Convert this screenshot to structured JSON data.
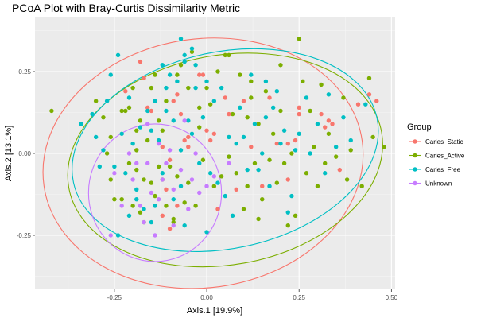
{
  "chart_data": {
    "type": "scatter",
    "title": "PCoA Plot with Bray-Curtis Dissimilarity Metric",
    "xlabel": "Axis.1   [19.9%]",
    "ylabel": "Axis.2   [13.1%]",
    "xlim": [
      -0.465,
      0.51
    ],
    "ylim": [
      -0.415,
      0.415
    ],
    "x_ticks": [
      -0.25,
      0.0,
      0.25,
      0.5
    ],
    "x_tick_labels": [
      "-0.25",
      "0.00",
      "0.25",
      "0.50"
    ],
    "y_ticks": [
      -0.25,
      0.0,
      0.25
    ],
    "y_tick_labels": [
      "-0.25",
      "0.00",
      "0.25"
    ],
    "grid": true,
    "background": "#ebebeb",
    "legend": {
      "title": "Group",
      "position": "right"
    },
    "series": [
      {
        "name": "Caries_Static",
        "color": "#F8766D",
        "points": [
          [
            -0.18,
            0.28
          ],
          [
            -0.17,
            0.23
          ],
          [
            -0.16,
            0.14
          ],
          [
            -0.15,
            0.13
          ],
          [
            -0.12,
            0.02
          ],
          [
            -0.1,
            -0.02
          ],
          [
            -0.1,
            -0.23
          ],
          [
            -0.09,
            0.16
          ],
          [
            -0.08,
            0.18
          ],
          [
            -0.07,
            0.12
          ],
          [
            -0.06,
            0.04
          ],
          [
            -0.05,
            0.05
          ],
          [
            -0.02,
            0.24
          ],
          [
            -0.01,
            0.24
          ],
          [
            0.0,
            0.07
          ],
          [
            0.01,
            0.04
          ],
          [
            0.02,
            0.06
          ],
          [
            0.05,
            0.17
          ],
          [
            0.06,
            0.12
          ],
          [
            0.08,
            -0.11
          ],
          [
            0.1,
            0.16
          ],
          [
            0.12,
            0.02
          ],
          [
            0.17,
            0.17
          ],
          [
            0.19,
            0.03
          ],
          [
            0.22,
            0.03
          ],
          [
            0.22,
            -0.08
          ],
          [
            0.24,
            0.04
          ],
          [
            0.25,
            0.12
          ],
          [
            0.25,
            0.14
          ],
          [
            0.31,
            0.12
          ],
          [
            0.32,
            0.08
          ],
          [
            0.33,
            0.1
          ],
          [
            0.34,
            0.09
          ],
          [
            0.36,
            -0.05
          ],
          [
            0.41,
            0.15
          ],
          [
            0.44,
            0.18
          ],
          [
            0.46,
            0.16
          ],
          [
            -0.05,
            0.02
          ],
          [
            -0.22,
            0.19
          ],
          [
            -0.11,
            -0.11
          ],
          [
            -0.12,
            -0.19
          ],
          [
            0.03,
            -0.17
          ],
          [
            -0.08,
            -0.16
          ],
          [
            0.15,
            -0.1
          ]
        ]
      },
      {
        "name": "Caries_Active",
        "color": "#7CAE00",
        "points": [
          [
            -0.42,
            0.13
          ],
          [
            -0.3,
            0.16
          ],
          [
            -0.28,
            0.11
          ],
          [
            -0.27,
            0.0
          ],
          [
            -0.26,
            0.05
          ],
          [
            -0.26,
            -0.08
          ],
          [
            -0.25,
            -0.14
          ],
          [
            -0.23,
            0.13
          ],
          [
            -0.23,
            -0.14
          ],
          [
            -0.22,
            0.13
          ],
          [
            -0.21,
            0.14
          ],
          [
            -0.21,
            -0.03
          ],
          [
            -0.2,
            0.2
          ],
          [
            -0.2,
            -0.16
          ],
          [
            -0.19,
            0.07
          ],
          [
            -0.19,
            -0.05
          ],
          [
            -0.18,
            0.1
          ],
          [
            -0.18,
            -0.18
          ],
          [
            -0.17,
            -0.08
          ],
          [
            -0.17,
            -0.21
          ],
          [
            -0.16,
            0.04
          ],
          [
            -0.15,
            -0.09
          ],
          [
            -0.14,
            0.24
          ],
          [
            -0.14,
            -0.13
          ],
          [
            -0.13,
            0.1
          ],
          [
            -0.13,
            -0.04
          ],
          [
            -0.12,
            0.07
          ],
          [
            -0.12,
            -0.08
          ],
          [
            -0.11,
            0.16
          ],
          [
            -0.11,
            -0.16
          ],
          [
            -0.1,
            -0.04
          ],
          [
            -0.09,
            -0.21
          ],
          [
            -0.08,
            0.24
          ],
          [
            -0.08,
            -0.07
          ],
          [
            -0.07,
            0.27
          ],
          [
            -0.06,
            -0.15
          ],
          [
            -0.05,
            0.2
          ],
          [
            -0.05,
            -0.09
          ],
          [
            -0.04,
            0.31
          ],
          [
            -0.03,
            -0.16
          ],
          [
            -0.02,
            0.14
          ],
          [
            -0.01,
            -0.02
          ],
          [
            0.0,
            0.2
          ],
          [
            0.02,
            -0.1
          ],
          [
            0.03,
            0.25
          ],
          [
            0.04,
            -0.07
          ],
          [
            0.05,
            0.3
          ],
          [
            0.06,
            -0.01
          ],
          [
            0.07,
            0.12
          ],
          [
            0.08,
            -0.06
          ],
          [
            0.09,
            0.24
          ],
          [
            0.1,
            -0.17
          ],
          [
            0.11,
            0.11
          ],
          [
            0.11,
            -0.1
          ],
          [
            0.12,
            0.22
          ],
          [
            0.13,
            -0.03
          ],
          [
            0.14,
            0.09
          ],
          [
            0.15,
            -0.14
          ],
          [
            0.16,
            0.19
          ],
          [
            0.17,
            -0.02
          ],
          [
            0.18,
            0.06
          ],
          [
            0.19,
            -0.09
          ],
          [
            0.2,
            0.13
          ],
          [
            0.21,
            -0.03
          ],
          [
            0.22,
            -0.22
          ],
          [
            0.23,
            0.0
          ],
          [
            0.24,
            -0.19
          ],
          [
            0.25,
            0.35
          ],
          [
            0.26,
            0.22
          ],
          [
            0.27,
            -0.06
          ],
          [
            0.28,
            0.13
          ],
          [
            0.29,
            0.02
          ],
          [
            0.3,
            -0.1
          ],
          [
            0.31,
            0.21
          ],
          [
            0.32,
            -0.03
          ],
          [
            0.33,
            0.06
          ],
          [
            0.35,
            -0.01
          ],
          [
            0.37,
            0.17
          ],
          [
            0.38,
            -0.08
          ],
          [
            0.39,
            0.01
          ],
          [
            0.42,
            -0.1
          ],
          [
            0.44,
            0.23
          ],
          [
            0.45,
            0.05
          ],
          [
            0.48,
            0.02
          ],
          [
            -0.02,
            0.08
          ],
          [
            0.12,
            0.17
          ],
          [
            -0.15,
            0.2
          ],
          [
            0.06,
            0.3
          ],
          [
            0.14,
            -0.2
          ],
          [
            -0.09,
            -0.2
          ],
          [
            -0.19,
            0.01
          ],
          [
            0.01,
            0.15
          ],
          [
            0.2,
            0.27
          ]
        ]
      },
      {
        "name": "Caries_Free",
        "color": "#00BFC4",
        "points": [
          [
            -0.34,
            0.09
          ],
          [
            -0.31,
            0.12
          ],
          [
            -0.3,
            0.05
          ],
          [
            -0.29,
            -0.04
          ],
          [
            -0.28,
            0.01
          ],
          [
            -0.27,
            0.16
          ],
          [
            -0.26,
            0.24
          ],
          [
            -0.25,
            -0.04
          ],
          [
            -0.24,
            -0.25
          ],
          [
            -0.24,
            0.3
          ],
          [
            -0.23,
            0.06
          ],
          [
            -0.22,
            -0.06
          ],
          [
            -0.21,
            0.17
          ],
          [
            -0.21,
            -0.19
          ],
          [
            -0.2,
            0.03
          ],
          [
            -0.19,
            -0.11
          ],
          [
            -0.19,
            -0.14
          ],
          [
            -0.18,
            0.08
          ],
          [
            -0.17,
            -0.17
          ],
          [
            -0.16,
            0.13
          ],
          [
            -0.15,
            0.07
          ],
          [
            -0.15,
            -0.21
          ],
          [
            -0.14,
            0.16
          ],
          [
            -0.14,
            -0.16
          ],
          [
            -0.13,
            0.04
          ],
          [
            -0.12,
            -0.06
          ],
          [
            -0.12,
            0.27
          ],
          [
            -0.11,
            0.13
          ],
          [
            -0.1,
            0.24
          ],
          [
            -0.09,
            0.1
          ],
          [
            -0.09,
            -0.14
          ],
          [
            -0.08,
            0.22
          ],
          [
            -0.07,
            0.01
          ],
          [
            -0.07,
            -0.1
          ],
          [
            -0.06,
            0.3
          ],
          [
            -0.06,
            -0.22
          ],
          [
            -0.05,
            0.1
          ],
          [
            -0.04,
            0.32
          ],
          [
            -0.04,
            0.06
          ],
          [
            -0.03,
            0.2
          ],
          [
            -0.02,
            -0.03
          ],
          [
            -0.01,
            0.11
          ],
          [
            0.0,
            0.22
          ],
          [
            0.01,
            -0.06
          ],
          [
            0.02,
            0.16
          ],
          [
            0.03,
            -0.09
          ],
          [
            0.04,
            0.2
          ],
          [
            0.05,
            -0.13
          ],
          [
            0.06,
            0.05
          ],
          [
            0.07,
            -0.19
          ],
          [
            0.08,
            0.03
          ],
          [
            0.09,
            0.14
          ],
          [
            0.1,
            0.05
          ],
          [
            0.11,
            -0.05
          ],
          [
            0.12,
            0.24
          ],
          [
            0.13,
            0.09
          ],
          [
            0.14,
            -0.05
          ],
          [
            0.15,
            0.0
          ],
          [
            0.16,
            0.11
          ],
          [
            0.17,
            -0.1
          ],
          [
            0.18,
            0.14
          ],
          [
            0.19,
            0.19
          ],
          [
            0.2,
            0.03
          ],
          [
            0.21,
            0.07
          ],
          [
            0.22,
            -0.18
          ],
          [
            0.23,
            -0.13
          ],
          [
            0.24,
            0.01
          ],
          [
            0.25,
            0.06
          ],
          [
            0.27,
            0.17
          ],
          [
            0.28,
            0.0
          ],
          [
            0.3,
            0.09
          ],
          [
            0.32,
            -0.06
          ],
          [
            0.33,
            0.18
          ],
          [
            0.35,
            0.02
          ],
          [
            0.37,
            0.11
          ],
          [
            0.39,
            0.04
          ],
          [
            0.43,
            0.15
          ],
          [
            -0.07,
            0.35
          ],
          [
            -0.06,
            0.28
          ],
          [
            -0.03,
            0.27
          ],
          [
            -0.11,
            0.2
          ],
          [
            0.0,
            -0.24
          ],
          [
            0.16,
            0.22
          ]
        ]
      },
      {
        "name": "Unknown",
        "color": "#C77CFF",
        "points": [
          [
            -0.26,
            -0.25
          ],
          [
            -0.25,
            -0.06
          ],
          [
            -0.23,
            -0.16
          ],
          [
            -0.21,
            0.0
          ],
          [
            -0.2,
            -0.08
          ],
          [
            -0.19,
            -0.03
          ],
          [
            -0.18,
            -0.16
          ],
          [
            -0.17,
            -0.21
          ],
          [
            -0.16,
            0.09
          ],
          [
            -0.16,
            -0.03
          ],
          [
            -0.15,
            -0.12
          ],
          [
            -0.14,
            -0.25
          ],
          [
            -0.13,
            0.03
          ],
          [
            -0.13,
            -0.14
          ],
          [
            -0.12,
            -0.08
          ],
          [
            -0.11,
            -0.03
          ],
          [
            -0.1,
            0.01
          ],
          [
            -0.09,
            -0.22
          ],
          [
            -0.09,
            -0.11
          ],
          [
            -0.07,
            -0.05
          ],
          [
            -0.06,
            0.1
          ],
          [
            -0.05,
            -0.17
          ],
          [
            -0.04,
            -0.08
          ],
          [
            -0.03,
            0.0
          ],
          [
            -0.02,
            -0.12
          ],
          [
            0.0,
            -0.1
          ],
          [
            0.02,
            -0.07
          ],
          [
            0.06,
            -0.03
          ]
        ]
      }
    ],
    "ellipses": [
      {
        "series": "Caries_Static",
        "cx": -0.01,
        "cy": -0.03,
        "rx": 0.435,
        "ry": 0.38,
        "angle_deg": -8
      },
      {
        "series": "Caries_Active",
        "cx": 0.05,
        "cy": -0.02,
        "rx": 0.43,
        "ry": 0.32,
        "angle_deg": -10
      },
      {
        "series": "Caries_Free",
        "cx": 0.05,
        "cy": 0.01,
        "rx": 0.42,
        "ry": 0.3,
        "angle_deg": -12
      },
      {
        "series": "Unknown",
        "cx": -0.14,
        "cy": -0.12,
        "rx": 0.18,
        "ry": 0.21,
        "angle_deg": 0
      }
    ]
  }
}
